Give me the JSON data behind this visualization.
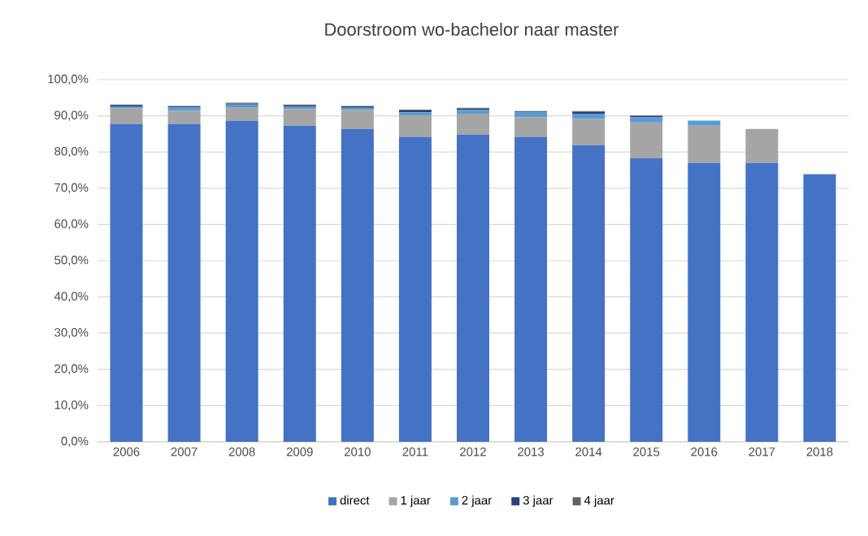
{
  "chart_data": {
    "type": "bar",
    "stacked": true,
    "title": "Doorstroom wo-bachelor naar master",
    "categories": [
      "2006",
      "2007",
      "2008",
      "2009",
      "2010",
      "2011",
      "2012",
      "2013",
      "2014",
      "2015",
      "2016",
      "2017",
      "2018"
    ],
    "series": [
      {
        "name": "direct",
        "color": "#4472c4",
        "values": [
          87.8,
          87.8,
          88.6,
          87.3,
          86.4,
          84.2,
          84.8,
          84.2,
          81.9,
          78.3,
          77.0,
          77.0,
          73.9
        ]
      },
      {
        "name": "1 jaar",
        "color": "#a5a5a5",
        "values": [
          4.3,
          3.6,
          3.6,
          4.6,
          5.2,
          5.9,
          5.8,
          5.4,
          7.2,
          9.9,
          10.3,
          9.4,
          null
        ]
      },
      {
        "name": "2 jaar",
        "color": "#5b9bd5",
        "values": [
          0.5,
          0.9,
          0.9,
          0.6,
          0.6,
          0.9,
          1.0,
          1.3,
          1.5,
          1.4,
          1.4,
          null,
          null
        ]
      },
      {
        "name": "3 jaar",
        "color": "#264478",
        "values": [
          0.4,
          0.3,
          0.3,
          0.4,
          0.4,
          0.5,
          0.4,
          0.3,
          0.5,
          0.4,
          null,
          null,
          null
        ]
      },
      {
        "name": "4 jaar",
        "color": "#636363",
        "values": [
          0.1,
          0.1,
          0.2,
          0.2,
          0.1,
          0.2,
          0.2,
          0.1,
          0.2,
          0.1,
          null,
          null,
          null
        ]
      }
    ],
    "ylim": [
      0,
      100
    ],
    "yticks": [
      {
        "value": 0,
        "label": "0,0%"
      },
      {
        "value": 10,
        "label": "10,0%"
      },
      {
        "value": 20,
        "label": "20,0%"
      },
      {
        "value": 30,
        "label": "30,0%"
      },
      {
        "value": 40,
        "label": "40,0%"
      },
      {
        "value": 50,
        "label": "50,0%"
      },
      {
        "value": 60,
        "label": "60,0%"
      },
      {
        "value": 70,
        "label": "70,0%"
      },
      {
        "value": 80,
        "label": "80,0%"
      },
      {
        "value": 90,
        "label": "90,0%"
      },
      {
        "value": 100,
        "label": "100,0%"
      }
    ],
    "grid": "y",
    "legend": "bottom"
  }
}
